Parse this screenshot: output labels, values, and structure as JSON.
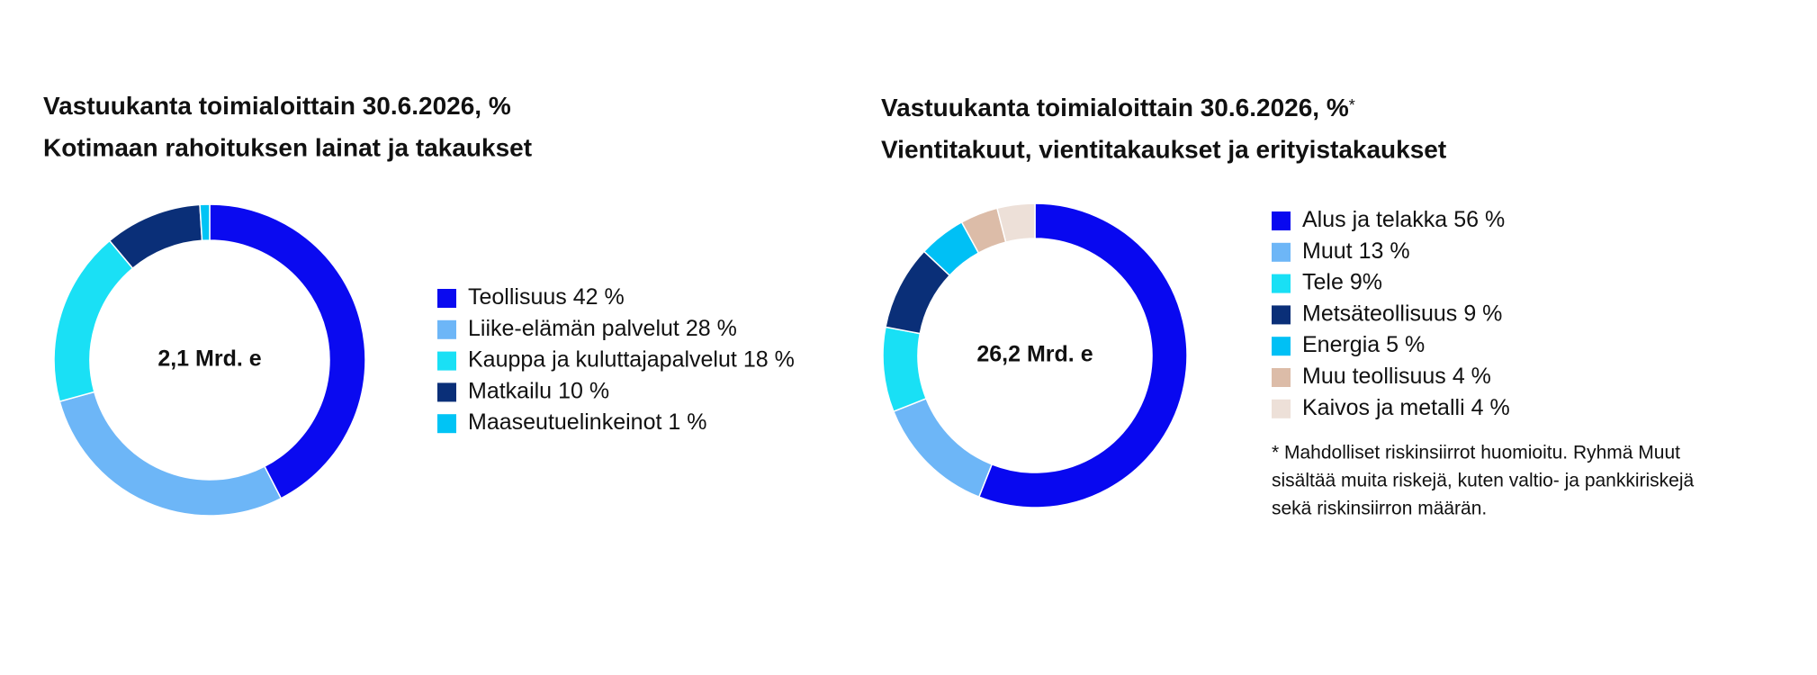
{
  "chart_data": [
    {
      "type": "donut",
      "title": "Vastuukanta toimialoittain 30.6.2026, %",
      "subtitle": "Kotimaan rahoituksen lainat ja takaukset",
      "center_label": "2,1 Mrd. e",
      "categories": [
        "Teollisuus",
        "Liike-elämän palvelut",
        "Kauppa ja kuluttajapalvelut",
        "Matkailu",
        "Maaseutuelinkeinot"
      ],
      "values": [
        42,
        28,
        18,
        10,
        1
      ],
      "value_labels": [
        "42 %",
        "28 %",
        "18 %",
        "10 %",
        "1 %"
      ],
      "colors": [
        "#0a0af0",
        "#6db6f7",
        "#1ae0f5",
        "#0a2f78",
        "#00c4f5"
      ]
    },
    {
      "type": "donut",
      "title": "Vastuukanta toimialoittain 30.6.2026, %",
      "title_note": "*",
      "subtitle": "Vientitakuut, vientitakaukset ja erityistakaukset",
      "center_label": "26,2 Mrd. e",
      "categories": [
        "Alus ja telakka",
        "Muut",
        "Tele",
        "Metsäteollisuus",
        "Energia",
        "Muu teollisuus",
        "Kaivos ja metalli"
      ],
      "values": [
        56,
        13,
        9,
        9,
        5,
        4,
        4
      ],
      "value_labels": [
        "56 %",
        "13 %",
        "9%",
        "9 %",
        "5 %",
        "4 %",
        "4 %"
      ],
      "colors": [
        "#0808f0",
        "#6db6f7",
        "#19e0f5",
        "#0a2f78",
        "#00c0f5",
        "#dcbca8",
        "#ede0d8"
      ],
      "note": [
        "* Mahdolliset riskinsiirrot huomioitu. Ryhmä Muut",
        "sisältää muita riskejä, kuten valtio- ja pankkiriskejä",
        "sekä riskinsiirron määrän."
      ]
    }
  ]
}
